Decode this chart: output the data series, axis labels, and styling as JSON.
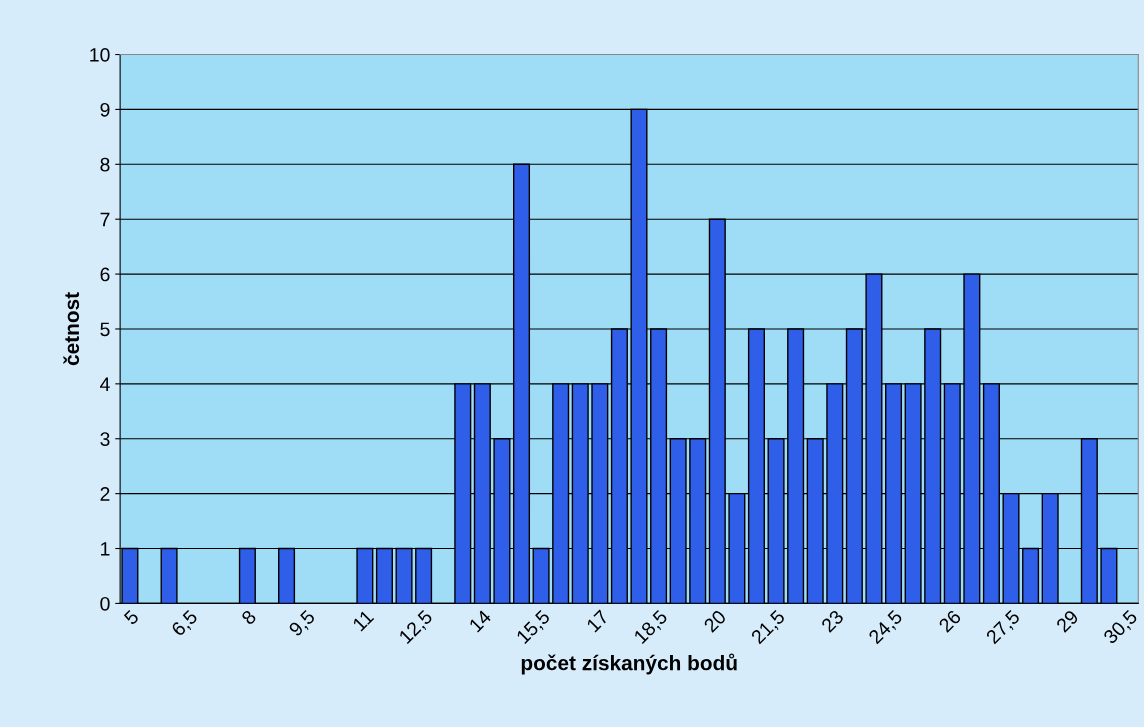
{
  "chart_data": {
    "type": "bar",
    "xlabel": "počet získaných bodů",
    "ylabel": "četnost",
    "categories": [
      "5",
      null,
      null,
      "6,5",
      null,
      null,
      "8",
      null,
      null,
      "9,5",
      null,
      null,
      "11",
      null,
      null,
      "12,5",
      null,
      null,
      "14",
      null,
      null,
      "15,5",
      null,
      null,
      "17",
      null,
      null,
      "18,5",
      null,
      null,
      "20",
      null,
      null,
      "21,5",
      null,
      null,
      "23",
      null,
      null,
      "24,5",
      null,
      null,
      "26",
      null,
      null,
      "27,5",
      null,
      null,
      "29",
      null,
      null,
      "30,5"
    ],
    "values": [
      1,
      0,
      1,
      0,
      0,
      0,
      1,
      0,
      1,
      0,
      0,
      0,
      1,
      1,
      1,
      1,
      0,
      4,
      4,
      3,
      8,
      1,
      4,
      4,
      4,
      5,
      9,
      5,
      3,
      3,
      7,
      2,
      5,
      3,
      5,
      3,
      4,
      5,
      6,
      4,
      4,
      5,
      4,
      6,
      4,
      2,
      1,
      2,
      0,
      3,
      1,
      0
    ],
    "color": "#2f5fe8",
    "ylim": [
      0,
      10
    ],
    "yticks": [
      0,
      1,
      2,
      3,
      4,
      5,
      6,
      7,
      8,
      9,
      10
    ],
    "grid": "y"
  }
}
